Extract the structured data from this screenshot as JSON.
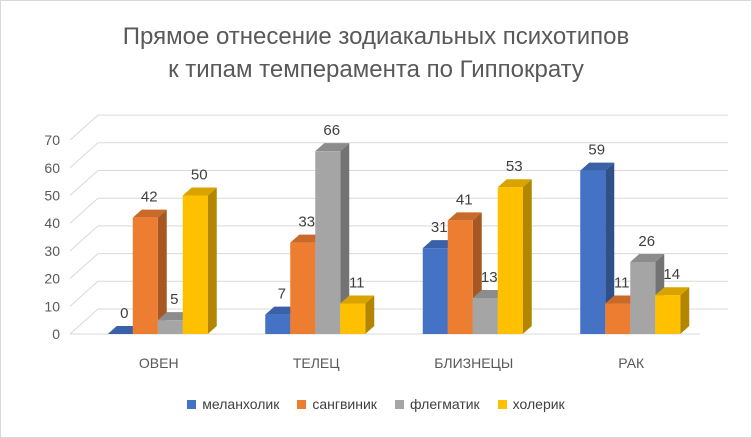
{
  "chart_data": {
    "type": "bar",
    "title_line1": "Прямое отнесение зодиакальных психотипов",
    "title_line2": "к типам темперамента по Гиппократу",
    "categories": [
      "ОВЕН",
      "ТЕЛЕЦ",
      "БЛИЗНЕЦЫ",
      "РАК"
    ],
    "series": [
      {
        "name": "меланхолик",
        "color": "#4472C4",
        "values": [
          0,
          7,
          31,
          59
        ]
      },
      {
        "name": "сангвиник",
        "color": "#ED7D31",
        "values": [
          42,
          33,
          41,
          11
        ]
      },
      {
        "name": "флегматик",
        "color": "#A5A5A5",
        "values": [
          5,
          66,
          13,
          26
        ]
      },
      {
        "name": "холерик",
        "color": "#FFC000",
        "values": [
          50,
          11,
          53,
          14
        ]
      }
    ],
    "y_ticks": [
      "0",
      "10",
      "20",
      "30",
      "40",
      "50",
      "60",
      "70"
    ],
    "ylim": [
      0,
      70
    ],
    "grid": true,
    "legend_position": "bottom",
    "style": "3d-clustered-column"
  }
}
